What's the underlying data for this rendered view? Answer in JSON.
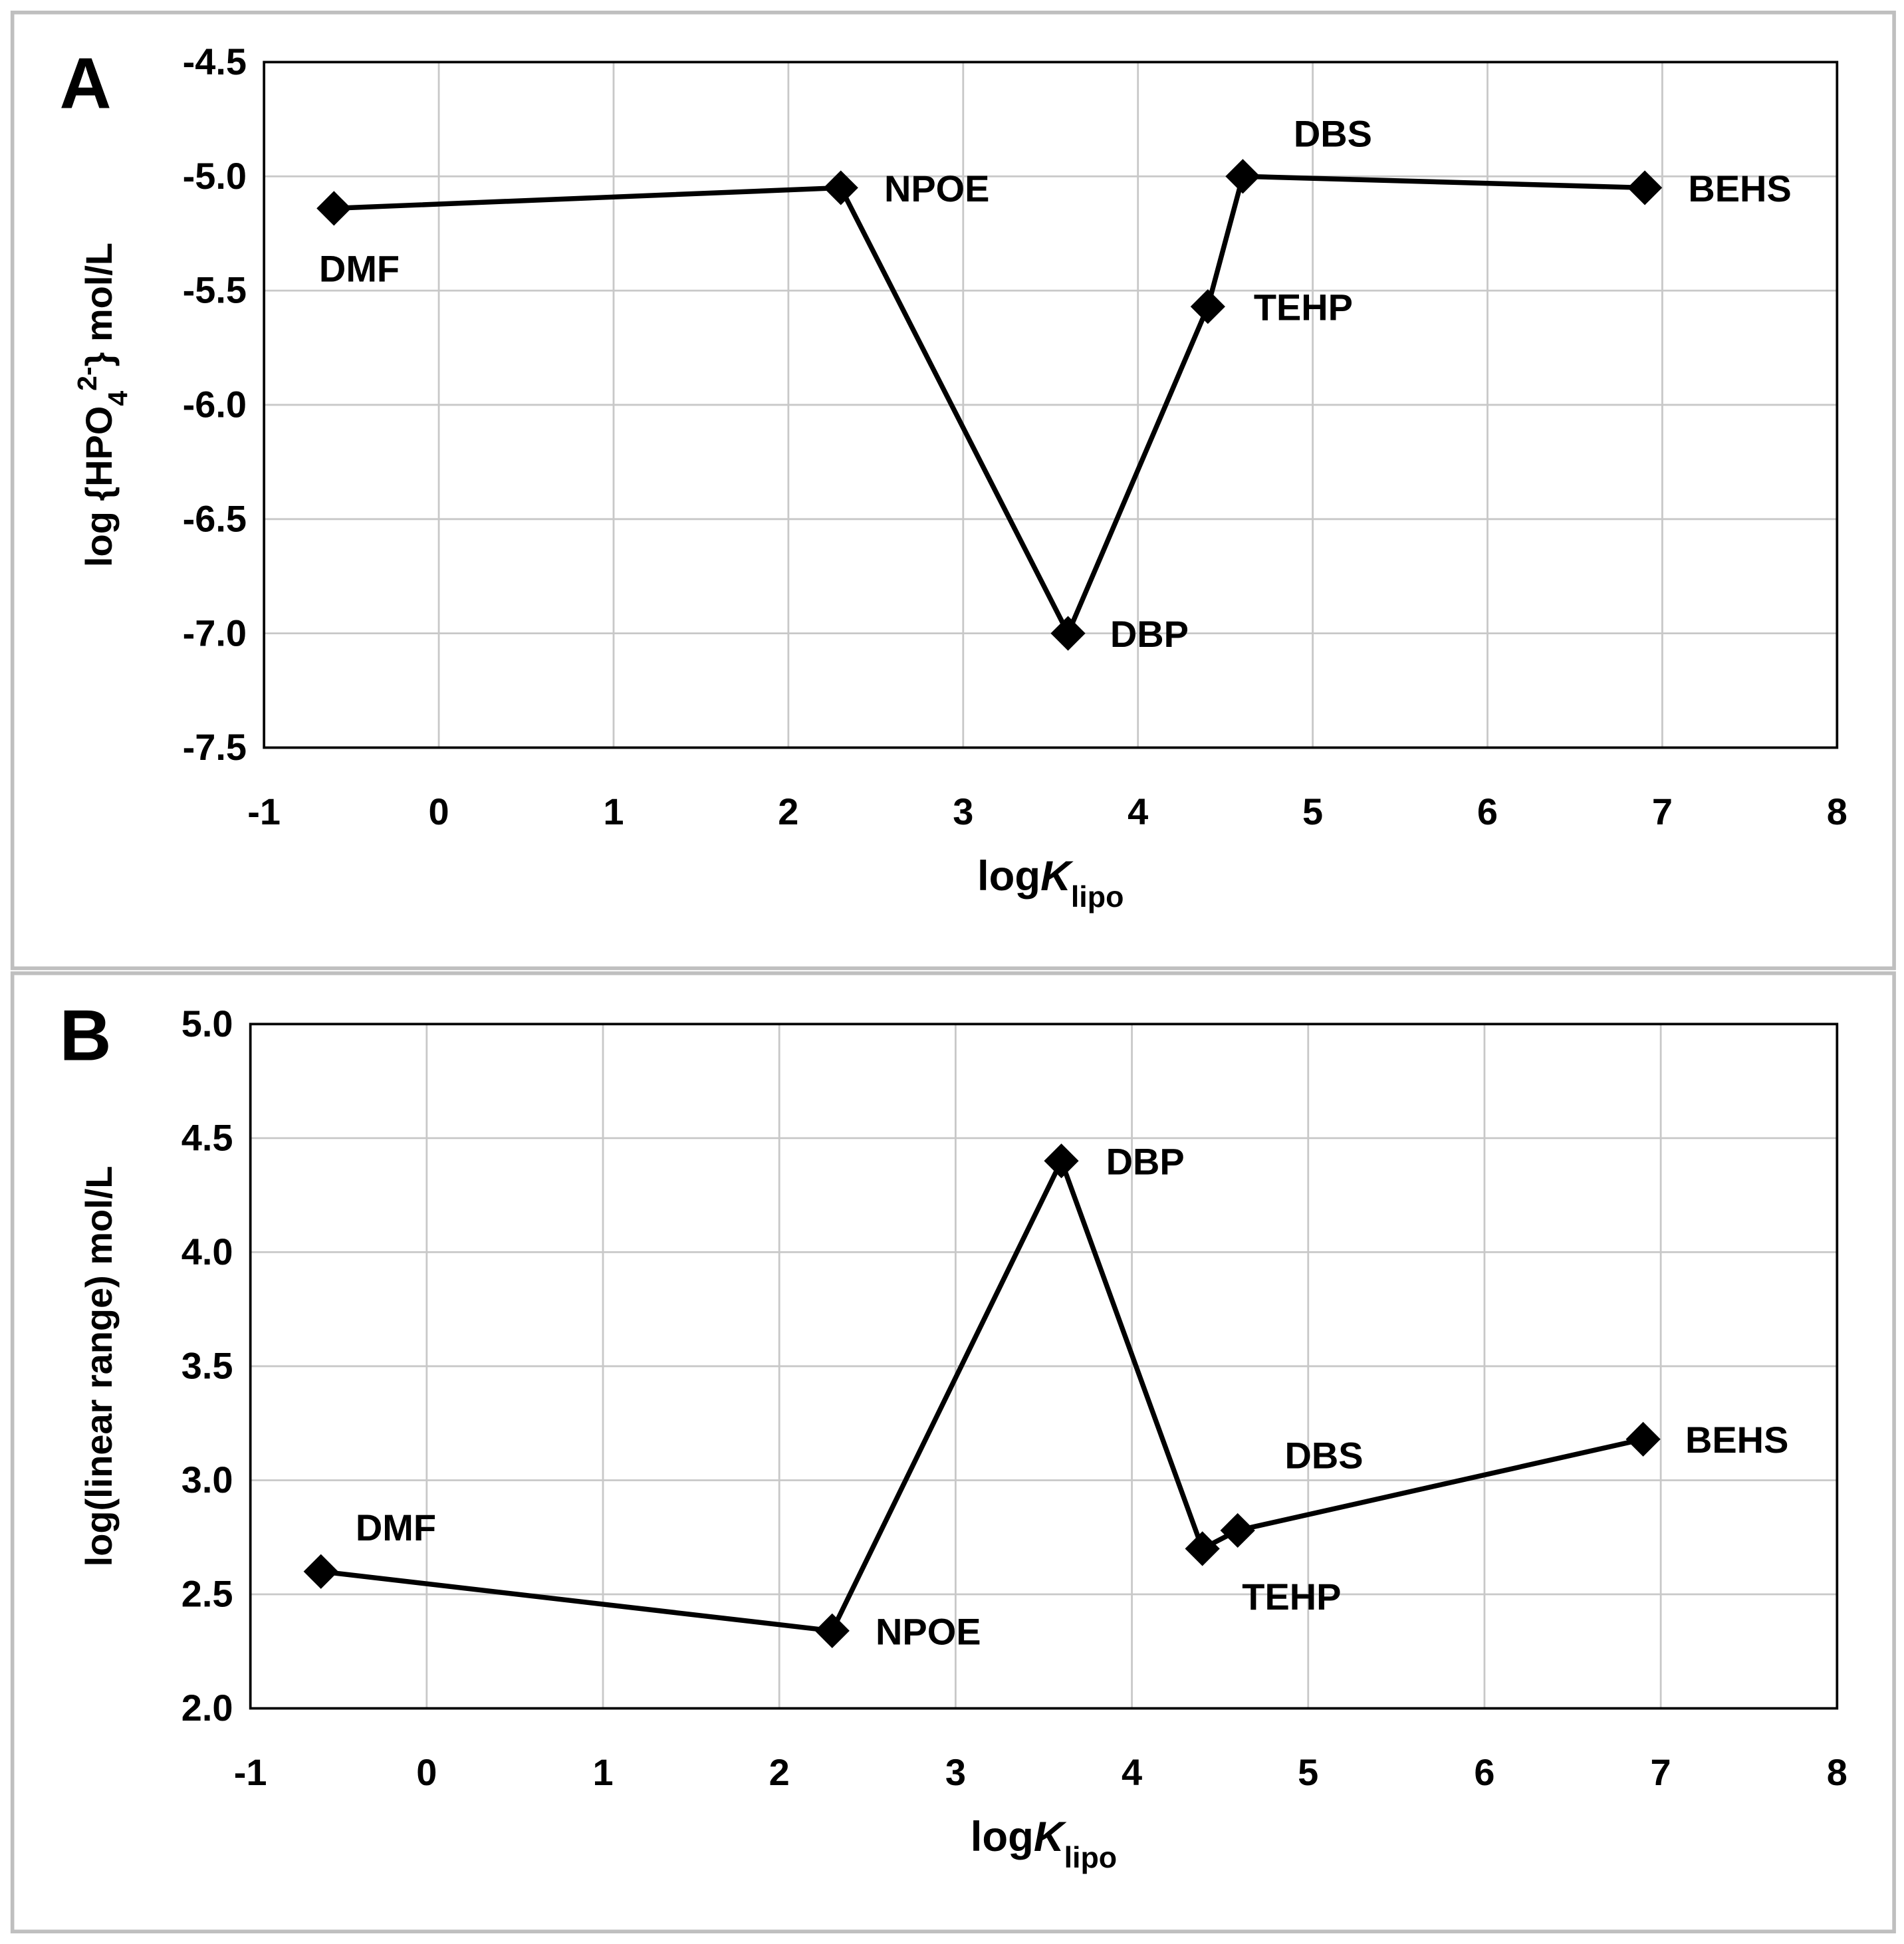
{
  "chart_data": [
    {
      "type": "line",
      "panel_label": "A",
      "ylabel": [
        "log {HPO",
        "4",
        "2-",
        "} mol/L"
      ],
      "xlabel": [
        "log",
        "K",
        "lipo"
      ],
      "x": [
        -0.6,
        2.3,
        3.6,
        4.4,
        4.6,
        6.9
      ],
      "values": [
        -5.14,
        -5.05,
        -7.0,
        -5.57,
        -5.0,
        -5.05
      ],
      "point_labels": [
        "DMF",
        "NPOE",
        "DBP",
        "TEHP",
        "DBS",
        "BEHS"
      ],
      "color": "#000000",
      "xlim": [
        -1,
        8
      ],
      "xticks": [
        -1,
        0,
        1,
        2,
        3,
        4,
        5,
        6,
        7,
        8
      ],
      "ylim": [
        -7.5,
        -4.5
      ],
      "yticks": [
        -4.5,
        {
          "value": -5,
          "label": "-5.0"
        },
        -5.5,
        {
          "value": -6,
          "label": "-6.0"
        },
        -6.5,
        {
          "value": -7,
          "label": "-7.0"
        },
        -7.5
      ],
      "grid": true
    },
    {
      "type": "line",
      "panel_label": "B",
      "ylabel": [
        "log(linear range) mol/L"
      ],
      "xlabel": [
        "log",
        "K",
        "lipo"
      ],
      "x": [
        -0.6,
        2.3,
        3.6,
        4.4,
        4.6,
        6.9
      ],
      "values": [
        2.6,
        2.34,
        4.4,
        2.7,
        2.78,
        3.18
      ],
      "point_labels": [
        "DMF",
        "NPOE",
        "DBP",
        "TEHP",
        "DBS",
        "BEHS"
      ],
      "color": "#000000",
      "xlim": [
        -1,
        8
      ],
      "xticks": [
        -1,
        0,
        1,
        2,
        3,
        4,
        5,
        6,
        7,
        8
      ],
      "ylim": [
        2,
        5
      ],
      "yticks": [
        {
          "value": 2,
          "label": "2.0"
        },
        2.5,
        {
          "value": 3,
          "label": "3.0"
        },
        3.5,
        {
          "value": 4,
          "label": "4.0"
        },
        4.5,
        {
          "value": 5,
          "label": "5.0"
        }
      ],
      "grid": true
    }
  ]
}
